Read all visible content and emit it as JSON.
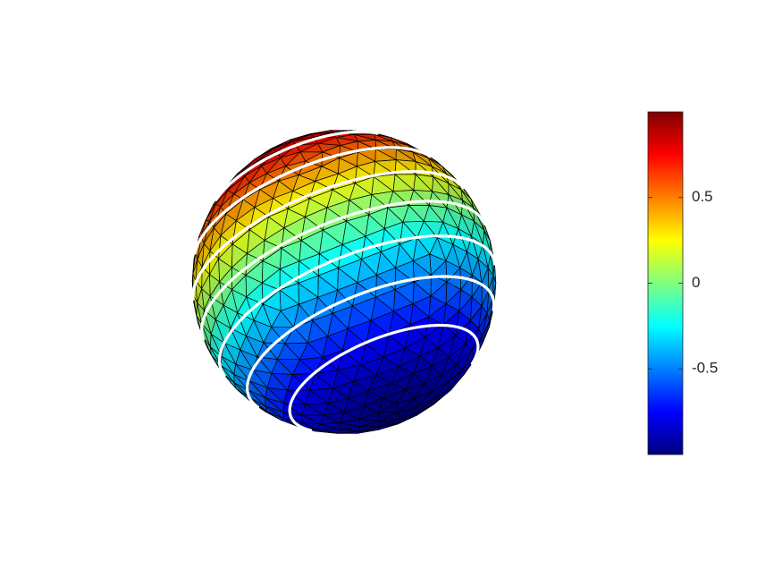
{
  "chart_data": {
    "type": "surface",
    "colormap": "jet",
    "clim": [
      -1,
      1
    ],
    "cticks": [
      -0.5,
      0,
      0.5
    ],
    "contour_levels": [
      -0.75,
      -0.5,
      -0.25,
      0,
      0.25,
      0.5,
      0.75
    ]
  }
}
